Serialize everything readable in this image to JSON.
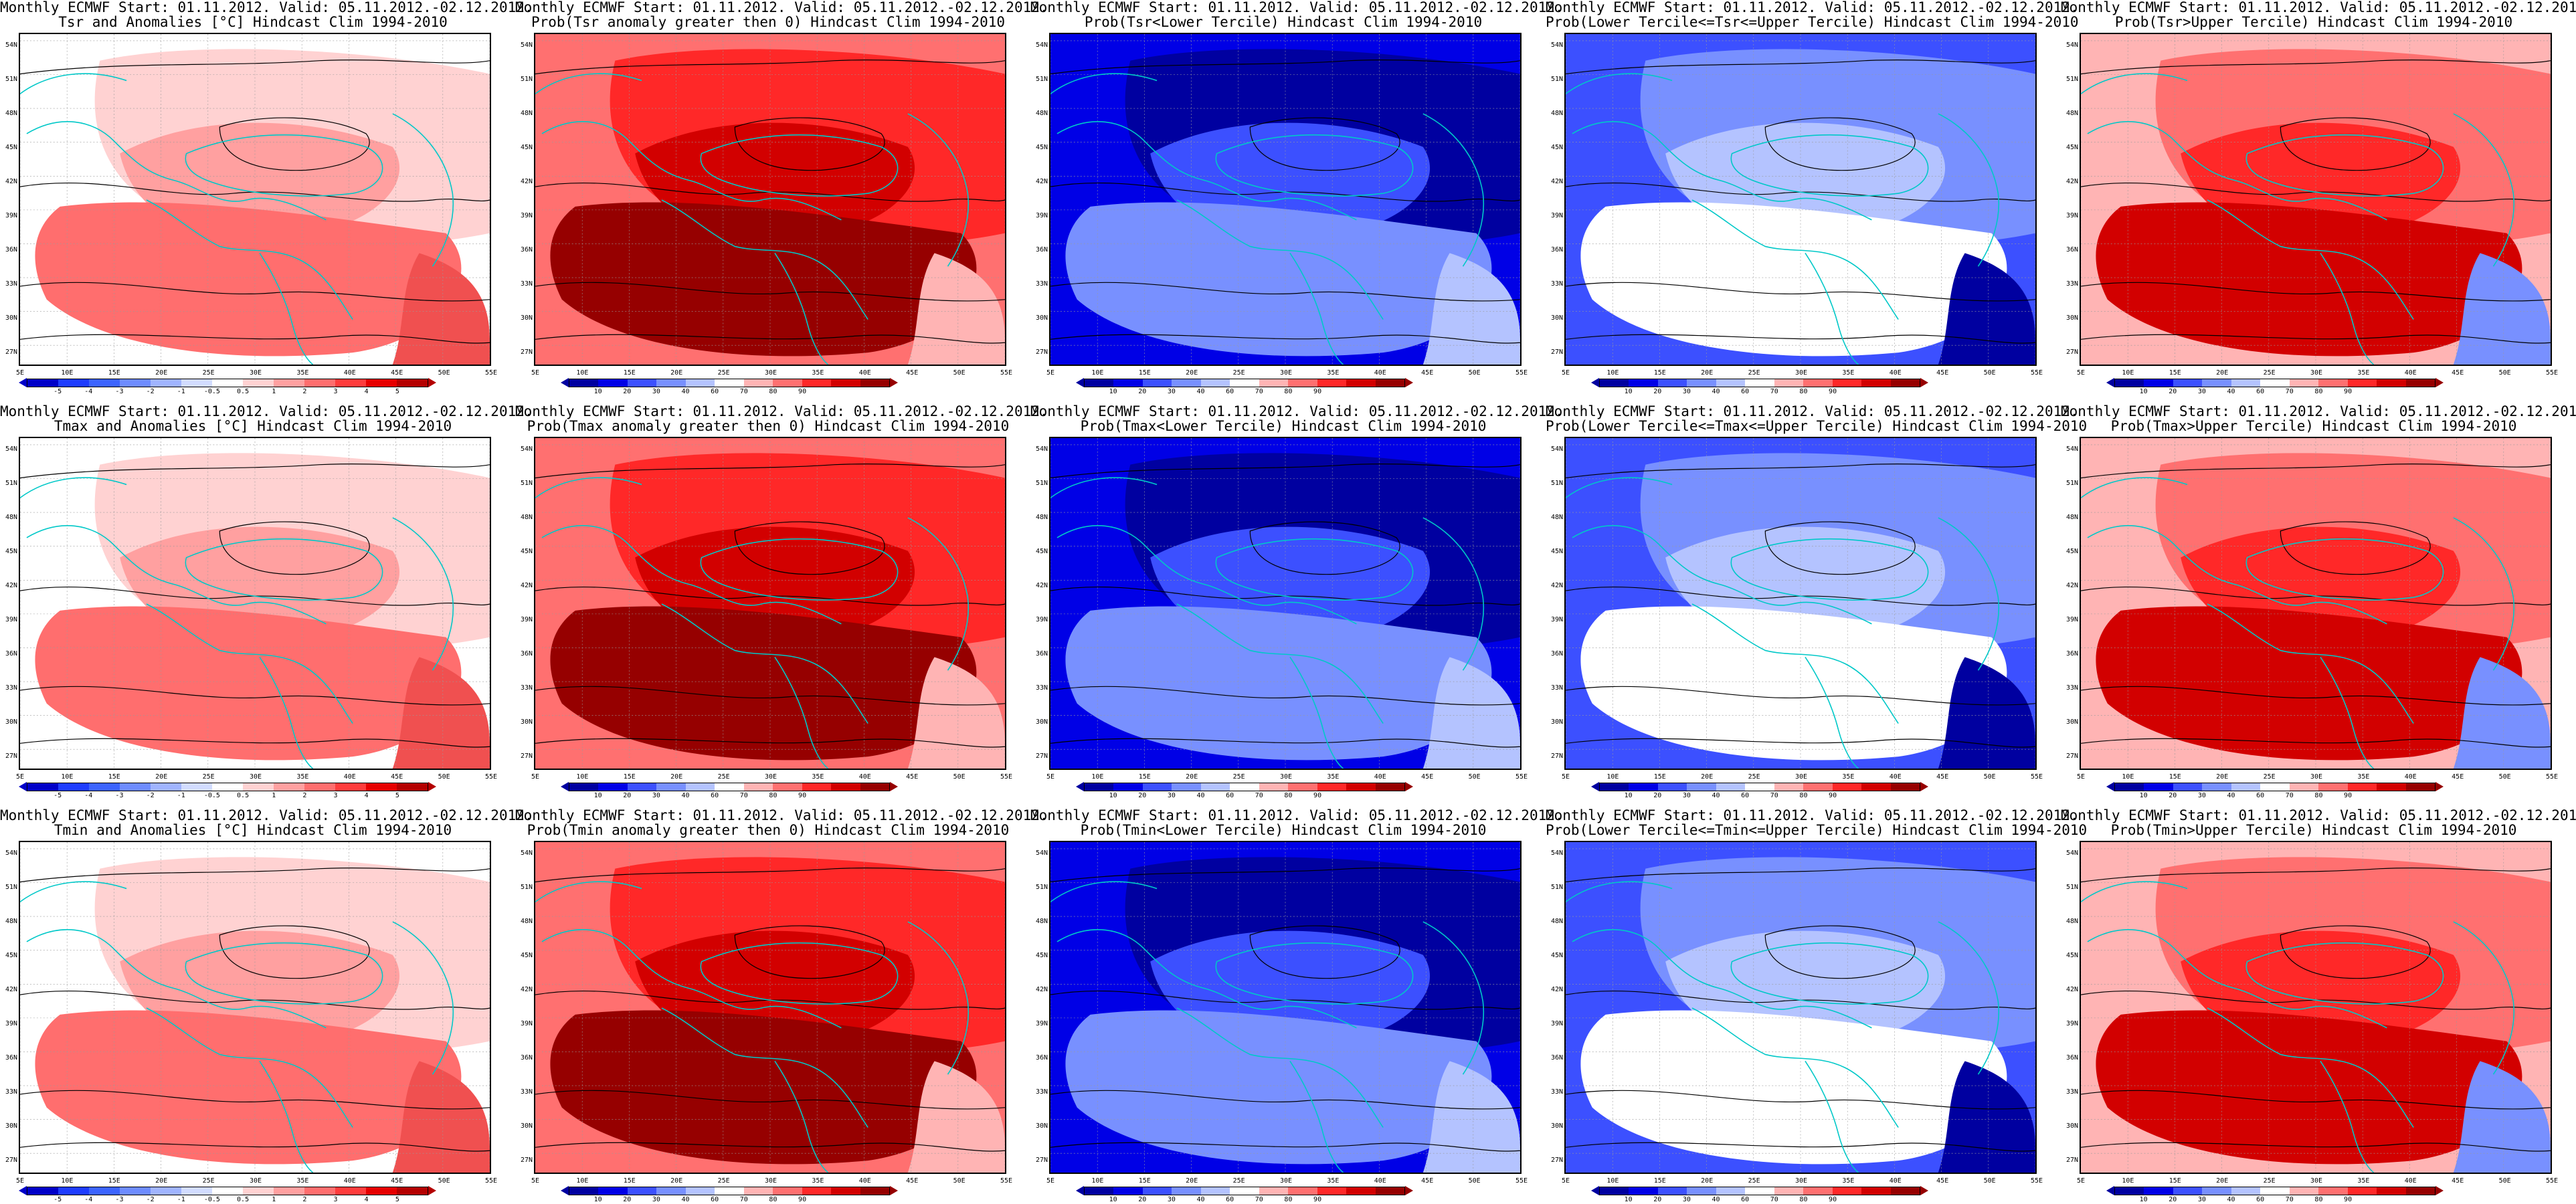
{
  "title_line1": "Monthly ECMWF Start: 01.11.2012. Valid: 05.11.2012.-02.12.2012.",
  "lat_labels": [
    "54N",
    "51N",
    "48N",
    "45N",
    "42N",
    "39N",
    "36N",
    "33N",
    "30N",
    "27N"
  ],
  "lon_labels": [
    "5E",
    "10E",
    "15E",
    "20E",
    "25E",
    "30E",
    "35E",
    "40E",
    "45E",
    "50E",
    "55E"
  ],
  "anom_scale": {
    "labels": [
      "-5",
      "-4",
      "-3",
      "-2",
      "-1",
      "-0.5",
      "0.5",
      "1",
      "2",
      "3",
      "4",
      "5"
    ],
    "colors": [
      "#0000c8",
      "#1e3cff",
      "#3c64ff",
      "#6e8cff",
      "#a0b4ff",
      "#d2dcff",
      "#ffffff",
      "#ffd2d2",
      "#ffa0a0",
      "#ff6e6e",
      "#ff3c3c",
      "#e60000",
      "#b40000"
    ]
  },
  "prob_scale": {
    "labels": [
      "10",
      "20",
      "30",
      "40",
      "60",
      "70",
      "80",
      "90"
    ],
    "colors": [
      "#0000a0",
      "#0000e6",
      "#3c50ff",
      "#7890ff",
      "#b4c3ff",
      "#ffffff",
      "#ffb4b4",
      "#ff7070",
      "#ff2828",
      "#d20000",
      "#960000"
    ]
  },
  "panels": [
    {
      "row": 0,
      "col": 0,
      "title": "Tsr and Anomalies [°C] Hindcast Clim 1994-2010",
      "scale": "anom"
    },
    {
      "row": 0,
      "col": 1,
      "title": "Prob(Tsr anomaly greater then 0) Hindcast Clim 1994-2010",
      "scale": "prob"
    },
    {
      "row": 0,
      "col": 2,
      "title": "Prob(Tsr<Lower Tercile) Hindcast Clim 1994-2010",
      "scale": "prob"
    },
    {
      "row": 0,
      "col": 3,
      "title": "Prob(Lower Tercile<=Tsr<=Upper Tercile) Hindcast Clim 1994-2010",
      "scale": "prob"
    },
    {
      "row": 0,
      "col": 4,
      "title": "Prob(Tsr>Upper Tercile) Hindcast Clim 1994-2010",
      "scale": "prob"
    },
    {
      "row": 1,
      "col": 0,
      "title": "Tmax and Anomalies [°C] Hindcast Clim 1994-2010",
      "scale": "anom"
    },
    {
      "row": 1,
      "col": 1,
      "title": "Prob(Tmax anomaly greater then 0) Hindcast Clim 1994-2010",
      "scale": "prob"
    },
    {
      "row": 1,
      "col": 2,
      "title": "Prob(Tmax<Lower Tercile) Hindcast Clim 1994-2010",
      "scale": "prob"
    },
    {
      "row": 1,
      "col": 3,
      "title": "Prob(Lower Tercile<=Tmax<=Upper Tercile) Hindcast Clim 1994-2010",
      "scale": "prob"
    },
    {
      "row": 1,
      "col": 4,
      "title": "Prob(Tmax>Upper Tercile) Hindcast Clim 1994-2010",
      "scale": "prob"
    },
    {
      "row": 2,
      "col": 0,
      "title": "Tmin and Anomalies [°C] Hindcast Clim 1994-2010",
      "scale": "anom"
    },
    {
      "row": 2,
      "col": 1,
      "title": "Prob(Tmin anomaly greater then 0) Hindcast Clim 1994-2010",
      "scale": "prob"
    },
    {
      "row": 2,
      "col": 2,
      "title": "Prob(Tmin<Lower Tercile) Hindcast Clim 1994-2010",
      "scale": "prob"
    },
    {
      "row": 2,
      "col": 3,
      "title": "Prob(Lower Tercile<=Tmin<=Upper Tercile) Hindcast Clim 1994-2010",
      "scale": "prob"
    },
    {
      "row": 2,
      "col": 4,
      "title": "Prob(Tmin>Upper Tercile) Hindcast Clim 1994-2010",
      "scale": "prob"
    }
  ],
  "field_colors": {
    "anom": [
      "#ffffff",
      "#ffd2d2",
      "#ffa0a0",
      "#ff6e6e",
      "#f05050"
    ],
    "prob_warm": [
      "#ff7070",
      "#ff2828",
      "#d20000",
      "#960000",
      "#ffb4b4"
    ],
    "prob_cold": [
      "#0000e6",
      "#0000a0",
      "#3c50ff",
      "#7890ff",
      "#b4c3ff"
    ],
    "prob_mid": [
      "#3c50ff",
      "#7890ff",
      "#b4c3ff",
      "#ffffff",
      "#0000a0"
    ],
    "prob_upper": [
      "#ffb4b4",
      "#ff7070",
      "#ff2828",
      "#d20000",
      "#7890ff"
    ]
  },
  "coast_color": "#00c8c8",
  "contour_color": "#000000"
}
